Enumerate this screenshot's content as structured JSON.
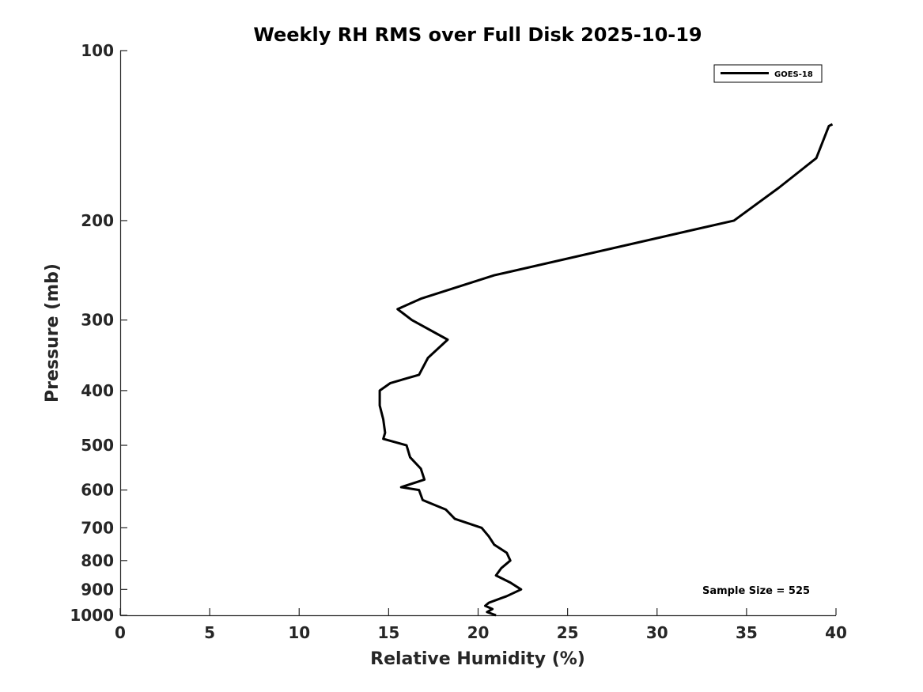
{
  "chart_data": {
    "type": "line",
    "title": "Weekly RH RMS over Full Disk 2025-10-19",
    "xlabel": "Relative Humidity (%)",
    "ylabel": "Pressure (mb)",
    "xlim": [
      0,
      40
    ],
    "ylim": [
      100,
      1000
    ],
    "y_scale": "log",
    "y_reversed": true,
    "x_ticks": [
      0,
      5,
      10,
      15,
      20,
      25,
      30,
      35,
      40
    ],
    "y_ticks": [
      100,
      200,
      300,
      400,
      500,
      600,
      700,
      800,
      900,
      1000
    ],
    "grid": false,
    "legend_position": "top-right",
    "series": [
      {
        "name": "GOES-18",
        "color": "#000000",
        "points": [
          {
            "x": 39.8,
            "y": 135
          },
          {
            "x": 39.6,
            "y": 136
          },
          {
            "x": 38.9,
            "y": 155
          },
          {
            "x": 36.8,
            "y": 175
          },
          {
            "x": 34.3,
            "y": 200
          },
          {
            "x": 20.9,
            "y": 250
          },
          {
            "x": 16.8,
            "y": 275
          },
          {
            "x": 15.5,
            "y": 287
          },
          {
            "x": 16.3,
            "y": 300
          },
          {
            "x": 18.3,
            "y": 325
          },
          {
            "x": 17.2,
            "y": 350
          },
          {
            "x": 16.7,
            "y": 375
          },
          {
            "x": 15.1,
            "y": 388
          },
          {
            "x": 14.5,
            "y": 400
          },
          {
            "x": 14.5,
            "y": 425
          },
          {
            "x": 14.7,
            "y": 450
          },
          {
            "x": 14.8,
            "y": 475
          },
          {
            "x": 14.7,
            "y": 487
          },
          {
            "x": 16.0,
            "y": 500
          },
          {
            "x": 16.2,
            "y": 525
          },
          {
            "x": 16.8,
            "y": 550
          },
          {
            "x": 17.0,
            "y": 575
          },
          {
            "x": 15.7,
            "y": 593
          },
          {
            "x": 16.7,
            "y": 600
          },
          {
            "x": 16.9,
            "y": 625
          },
          {
            "x": 18.2,
            "y": 650
          },
          {
            "x": 18.7,
            "y": 675
          },
          {
            "x": 20.2,
            "y": 700
          },
          {
            "x": 20.6,
            "y": 725
          },
          {
            "x": 20.9,
            "y": 750
          },
          {
            "x": 21.6,
            "y": 775
          },
          {
            "x": 21.8,
            "y": 800
          },
          {
            "x": 21.3,
            "y": 825
          },
          {
            "x": 21.0,
            "y": 850
          },
          {
            "x": 21.8,
            "y": 875
          },
          {
            "x": 22.4,
            "y": 900
          },
          {
            "x": 21.6,
            "y": 925
          },
          {
            "x": 20.6,
            "y": 950
          },
          {
            "x": 20.4,
            "y": 962
          },
          {
            "x": 20.8,
            "y": 975
          },
          {
            "x": 20.5,
            "y": 987
          },
          {
            "x": 21.0,
            "y": 1000
          }
        ]
      }
    ],
    "annotation": "Sample Size = 525"
  }
}
